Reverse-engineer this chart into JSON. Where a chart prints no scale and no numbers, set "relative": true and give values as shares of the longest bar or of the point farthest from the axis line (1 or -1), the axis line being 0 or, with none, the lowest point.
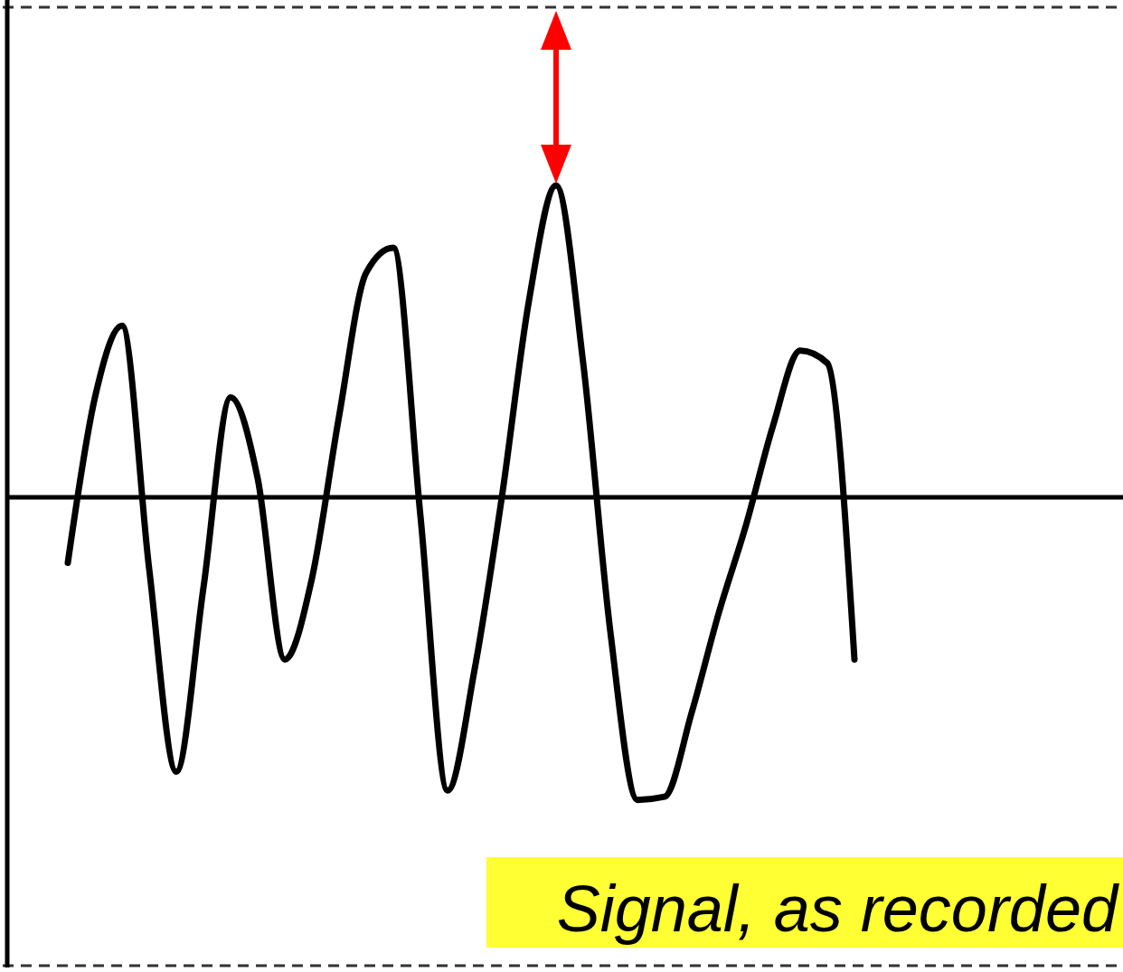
{
  "chart_data": {
    "type": "line",
    "relative": true,
    "categories": [
      null,
      null,
      null,
      null,
      null,
      null,
      null,
      null,
      null,
      null,
      null,
      null,
      null,
      null,
      null,
      null,
      null,
      null,
      null,
      null,
      null,
      null,
      null,
      null,
      null,
      null,
      null,
      null,
      null,
      null
    ],
    "values": [
      -0.21,
      0.32,
      0.55,
      -0.23,
      -0.88,
      -0.29,
      0.32,
      0.06,
      -0.52,
      -0.26,
      0.26,
      0.72,
      0.8,
      -0.06,
      -0.94,
      -0.55,
      0,
      0.63,
      1,
      0.43,
      -0.43,
      -0.97,
      -0.96,
      -0.69,
      -0.37,
      -0.09,
      0.23,
      0.47,
      0.43,
      -0.52
    ],
    "color": "#000000",
    "annotations": [
      "Signal, as recorded"
    ]
  }
}
